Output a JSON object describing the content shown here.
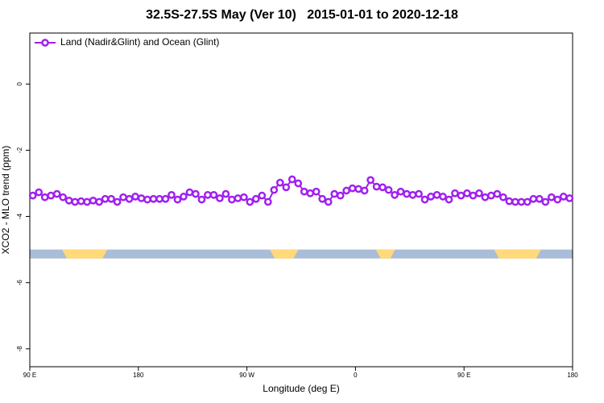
{
  "chart_data": {
    "type": "line",
    "title": "32.5S-27.5S May (Ver 10)   2015-01-01 to 2020-12-18",
    "x_label": "Longitude (deg E)",
    "y_label": "XCO2 - MLO trend (ppm)",
    "xlim": [
      90,
      540
    ],
    "xticks": [
      {
        "value": 90,
        "label": "90 E"
      },
      180,
      {
        "value": 270,
        "label": "90 W"
      },
      {
        "value": 360,
        "label": "0"
      },
      {
        "value": 450,
        "label": "90 E"
      },
      {
        "value": 540,
        "label": "180"
      }
    ],
    "ylim": [
      -8.54,
      1.54
    ],
    "yticks": [
      0,
      -2,
      -4,
      -6,
      -8
    ],
    "legend": "top-left",
    "x": [
      92.5,
      97.5,
      102.5,
      107.5,
      112.5,
      117.5,
      122.5,
      127.5,
      132.5,
      137.5,
      142.5,
      147.5,
      152.5,
      157.5,
      162.5,
      167.5,
      172.5,
      177.5,
      182.5,
      187.5,
      192.5,
      197.5,
      202.5,
      207.5,
      212.5,
      217.5,
      222.5,
      227.5,
      232.5,
      237.5,
      242.5,
      247.5,
      252.5,
      257.5,
      262.5,
      267.5,
      272.5,
      277.5,
      282.5,
      287.5,
      292.5,
      297.5,
      302.5,
      307.5,
      312.5,
      317.5,
      322.5,
      327.5,
      332.5,
      337.5,
      342.5,
      347.5,
      352.5,
      357.5,
      362.5,
      367.5,
      372.5,
      377.5,
      382.5,
      387.5,
      392.5,
      397.5,
      402.5,
      407.5,
      412.5,
      417.5,
      422.5,
      427.5,
      432.5,
      437.5,
      442.5,
      447.5,
      452.5,
      457.5,
      462.5,
      467.5,
      472.5,
      477.5,
      482.5,
      487.5,
      492.5,
      497.5,
      502.5,
      507.5,
      512.5,
      517.5,
      522.5,
      527.5,
      532.5,
      537.5
    ],
    "series": [
      {
        "name": "Land (Nadir&Glint) and Ocean (Glint)",
        "color": "#a020f0",
        "values": [
          -3.37,
          -3.27,
          -3.42,
          -3.37,
          -3.32,
          -3.42,
          -3.52,
          -3.56,
          -3.54,
          -3.56,
          -3.52,
          -3.56,
          -3.47,
          -3.47,
          -3.56,
          -3.42,
          -3.47,
          -3.4,
          -3.45,
          -3.49,
          -3.47,
          -3.47,
          -3.47,
          -3.35,
          -3.49,
          -3.4,
          -3.27,
          -3.32,
          -3.49,
          -3.35,
          -3.35,
          -3.45,
          -3.32,
          -3.49,
          -3.45,
          -3.42,
          -3.56,
          -3.47,
          -3.37,
          -3.56,
          -3.2,
          -2.98,
          -3.12,
          -2.88,
          -3.0,
          -3.25,
          -3.3,
          -3.25,
          -3.47,
          -3.56,
          -3.32,
          -3.37,
          -3.22,
          -3.15,
          -3.17,
          -3.22,
          -2.9,
          -3.1,
          -3.12,
          -3.2,
          -3.35,
          -3.25,
          -3.32,
          -3.35,
          -3.32,
          -3.49,
          -3.4,
          -3.35,
          -3.4,
          -3.49,
          -3.3,
          -3.37,
          -3.3,
          -3.37,
          -3.3,
          -3.42,
          -3.37,
          -3.32,
          -3.42,
          -3.54,
          -3.56,
          -3.56,
          -3.56,
          -3.47,
          -3.47,
          -3.56,
          -3.42,
          -3.49,
          -3.4,
          -3.45
        ]
      }
    ],
    "band": {
      "y": [
        -5.27,
        -5.0
      ],
      "color": "#a9bcd8",
      "land_color": "#ffd97a",
      "land": [
        [
          116.8,
          154.3
        ],
        [
          289,
          312.6
        ],
        [
          376.8,
          392.9
        ],
        [
          475,
          513.8
        ]
      ]
    }
  }
}
